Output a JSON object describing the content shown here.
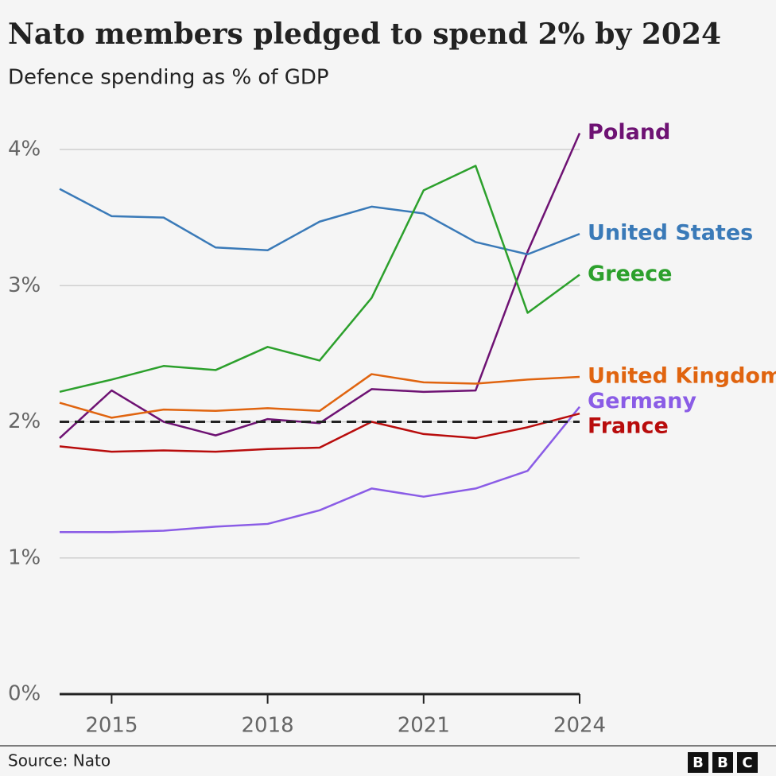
{
  "chart_data": {
    "type": "line",
    "title": "Nato members pledged to spend 2% by 2024",
    "subtitle": "Defence spending as % of GDP",
    "source": "Source: Nato",
    "logo": [
      "B",
      "B",
      "C"
    ],
    "x": [
      2014,
      2015,
      2016,
      2017,
      2018,
      2019,
      2020,
      2021,
      2022,
      2023,
      2024
    ],
    "xlim": [
      2014,
      2024
    ],
    "xticks": [
      2015,
      2018,
      2021,
      2024
    ],
    "ylim": [
      0,
      4
    ],
    "yticks": [
      {
        "value": 0,
        "label": "0%"
      },
      {
        "value": 1,
        "label": "1%"
      },
      {
        "value": 2,
        "label": "2%"
      },
      {
        "value": 3,
        "label": "3%"
      },
      {
        "value": 4,
        "label": "4%"
      }
    ],
    "grid": true,
    "reference_line": 2,
    "series": [
      {
        "name": "Poland",
        "color": "#6e1273",
        "values": [
          1.88,
          2.23,
          2.0,
          1.9,
          2.02,
          1.99,
          2.24,
          2.22,
          2.23,
          3.25,
          4.12
        ]
      },
      {
        "name": "United States",
        "color": "#3a7ab8",
        "values": [
          3.71,
          3.51,
          3.5,
          3.28,
          3.26,
          3.47,
          3.58,
          3.53,
          3.32,
          3.23,
          3.38
        ]
      },
      {
        "name": "Greece",
        "color": "#2ca02c",
        "values": [
          2.22,
          2.31,
          2.41,
          2.38,
          2.55,
          2.45,
          2.91,
          3.7,
          3.88,
          2.8,
          3.08
        ]
      },
      {
        "name": "United Kingdom",
        "color": "#e0640f",
        "values": [
          2.14,
          2.03,
          2.09,
          2.08,
          2.1,
          2.08,
          2.35,
          2.29,
          2.28,
          2.31,
          2.33
        ]
      },
      {
        "name": "Germany",
        "color": "#8a5ce6",
        "values": [
          1.19,
          1.19,
          1.2,
          1.23,
          1.25,
          1.35,
          1.51,
          1.45,
          1.51,
          1.64,
          2.11
        ]
      },
      {
        "name": "France",
        "color": "#b80c0c",
        "values": [
          1.82,
          1.78,
          1.79,
          1.78,
          1.8,
          1.81,
          2.0,
          1.91,
          1.88,
          1.96,
          2.06
        ]
      }
    ]
  }
}
